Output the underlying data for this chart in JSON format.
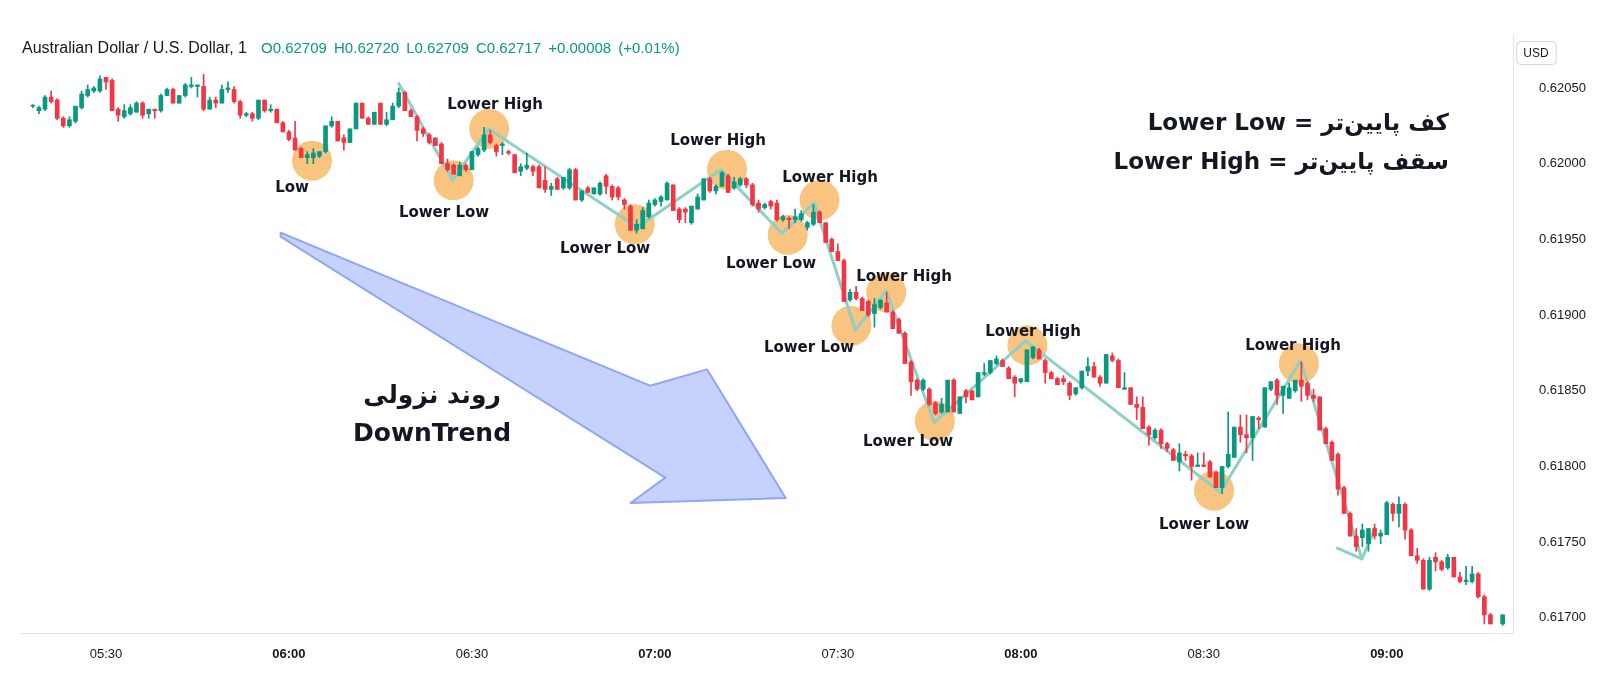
{
  "chart_data": {
    "type": "candlestick",
    "title": "Australian Dollar / U.S. Dollar, 1",
    "subtitle": "O0.62709 H0.62720 L0.62709 C0.62717 +0.00008 (+0.01%)",
    "ylabel": "USD",
    "x": [
      5.3,
      5.3167,
      5.3333,
      5.35,
      5.3667,
      5.3833,
      5.4,
      5.4167,
      5.4333,
      5.45,
      5.4667,
      5.4833,
      5.5,
      5.5167,
      5.5333,
      5.55,
      5.5667,
      5.5833,
      5.6,
      5.6167,
      5.6333,
      5.65,
      5.6667,
      5.6833,
      5.7,
      5.7167,
      5.7333,
      5.75,
      5.7667,
      5.7833,
      5.8,
      5.8167,
      5.8333,
      5.85,
      5.8667,
      5.8833,
      5.9,
      5.9167,
      5.9333,
      5.95,
      5.9667,
      5.9833,
      6,
      6.0167,
      6.0333,
      6.05,
      6.0667,
      6.0833,
      6.1,
      6.1167,
      6.1333,
      6.15,
      6.1667,
      6.1833,
      6.2,
      6.2167,
      6.2333,
      6.25,
      6.2667,
      6.2833,
      6.3,
      6.3167,
      6.3333,
      6.35,
      6.3667,
      6.3833,
      6.4,
      6.4167,
      6.4333,
      6.45,
      6.4667,
      6.4833,
      6.5,
      6.5167,
      6.5333,
      6.55,
      6.5667,
      6.5833,
      6.6,
      6.6167,
      6.6333,
      6.65,
      6.6667,
      6.6833,
      6.7,
      6.7167,
      6.7333,
      6.75,
      6.7667,
      6.7833,
      6.8,
      6.8167,
      6.8333,
      6.85,
      6.8667,
      6.8833,
      6.9,
      6.9167,
      6.9333,
      6.95,
      6.9667,
      6.9833,
      7,
      7.0167,
      7.0333,
      7.05,
      7.0667,
      7.0833,
      7.1,
      7.1167,
      7.1333,
      7.15,
      7.1667,
      7.1833,
      7.2,
      7.2167,
      7.2333,
      7.25,
      7.2667,
      7.2833,
      7.3,
      7.3167,
      7.3333,
      7.35,
      7.3667,
      7.3833,
      7.4,
      7.4167,
      7.4333,
      7.45,
      7.4667,
      7.4833,
      7.5,
      7.5167,
      7.5333,
      7.55,
      7.5667,
      7.5833,
      7.6,
      7.6167,
      7.6333,
      7.65,
      7.6667,
      7.6833,
      7.7,
      7.7167,
      7.7333,
      7.75,
      7.7667,
      7.7833,
      7.8,
      7.8167,
      7.8333,
      7.85,
      7.8667,
      7.8833,
      7.9,
      7.9167,
      7.9333,
      7.95,
      7.9667,
      7.9833,
      8,
      8.0167,
      8.0333,
      8.05,
      8.0667,
      8.0833,
      8.1,
      8.1167,
      8.1333,
      8.15,
      8.1667,
      8.1833,
      8.2,
      8.2167,
      8.2333,
      8.25,
      8.2667,
      8.2833,
      8.3,
      8.3167,
      8.3333,
      8.35,
      8.3667,
      8.3833,
      8.4,
      8.4167,
      8.4333,
      8.45,
      8.4667,
      8.4833,
      8.5,
      8.5167,
      8.5333,
      8.55,
      8.5667,
      8.5833,
      8.6,
      8.6167,
      8.6333,
      8.65,
      8.6667,
      8.6833,
      8.7,
      8.7167,
      8.7333,
      8.75,
      8.7667,
      8.7833,
      8.8,
      8.8167,
      8.8333,
      8.85,
      8.8667,
      8.8833,
      8.9,
      8.9167,
      8.9333,
      8.95,
      8.9667,
      8.9833,
      9,
      9.0167,
      9.0333,
      9.05,
      9.0667,
      9.0833,
      9.1,
      9.1167,
      9.1333,
      9.15,
      9.1667,
      9.1833,
      9.2,
      9.2167,
      9.2333,
      9.25,
      9.2667,
      9.2833,
      9.3167
    ],
    "ohlc": [
      [
        0.62038,
        0.62039,
        0.62037,
        0.62038
      ],
      [
        0.62035,
        0.62038,
        0.62033,
        0.62037
      ],
      [
        0.62036,
        0.62045,
        0.62035,
        0.62044
      ],
      [
        0.62044,
        0.62048,
        0.6204,
        0.62041
      ],
      [
        0.62042,
        0.62043,
        0.62029,
        0.6203
      ],
      [
        0.6203,
        0.62031,
        0.62024,
        0.62025
      ],
      [
        0.62025,
        0.62031,
        0.62024,
        0.62029
      ],
      [
        0.62028,
        0.62038,
        0.62027,
        0.62038
      ],
      [
        0.62037,
        0.62048,
        0.62036,
        0.62046
      ],
      [
        0.62045,
        0.62052,
        0.62044,
        0.62049
      ],
      [
        0.62048,
        0.62051,
        0.62047,
        0.6205
      ],
      [
        0.62048,
        0.62058,
        0.62047,
        0.62056
      ],
      [
        0.62057,
        0.62057,
        0.62049,
        0.62054
      ],
      [
        0.62055,
        0.62056,
        0.62035,
        0.62035
      ],
      [
        0.62036,
        0.62037,
        0.62028,
        0.62032
      ],
      [
        0.62031,
        0.62039,
        0.6203,
        0.62035
      ],
      [
        0.62033,
        0.62039,
        0.62032,
        0.62037
      ],
      [
        0.62034,
        0.62041,
        0.62034,
        0.6204
      ],
      [
        0.6204,
        0.62041,
        0.6203,
        0.62032
      ],
      [
        0.62033,
        0.62036,
        0.6203,
        0.62036
      ],
      [
        0.62036,
        0.62036,
        0.6203,
        0.62035
      ],
      [
        0.62035,
        0.62046,
        0.62034,
        0.62045
      ],
      [
        0.62045,
        0.6205,
        0.62045,
        0.62049
      ],
      [
        0.62049,
        0.6205,
        0.6204,
        0.6204
      ],
      [
        0.6204,
        0.62045,
        0.6204,
        0.62045
      ],
      [
        0.62045,
        0.62053,
        0.62044,
        0.62052
      ],
      [
        0.62051,
        0.62057,
        0.6205,
        0.62052
      ],
      [
        0.62051,
        0.62052,
        0.62044,
        0.62052
      ],
      [
        0.62051,
        0.62059,
        0.62035,
        0.62036
      ],
      [
        0.62036,
        0.62044,
        0.62036,
        0.62042
      ],
      [
        0.62042,
        0.62044,
        0.62037,
        0.6204
      ],
      [
        0.6204,
        0.62052,
        0.6204,
        0.62049
      ],
      [
        0.62049,
        0.62054,
        0.62047,
        0.6205
      ],
      [
        0.62049,
        0.62051,
        0.6204,
        0.62041
      ],
      [
        0.62041,
        0.62042,
        0.6203,
        0.62032
      ],
      [
        0.62032,
        0.62034,
        0.62031,
        0.62033
      ],
      [
        0.62033,
        0.62034,
        0.62028,
        0.6203
      ],
      [
        0.6203,
        0.62042,
        0.62029,
        0.62042
      ],
      [
        0.62042,
        0.62042,
        0.62034,
        0.62035
      ],
      [
        0.62035,
        0.62039,
        0.62034,
        0.62036
      ],
      [
        0.62036,
        0.62036,
        0.62027,
        0.62027
      ],
      [
        0.62027,
        0.62028,
        0.62021,
        0.62021
      ],
      [
        0.62021,
        0.62022,
        0.62015,
        0.62016
      ],
      [
        0.62017,
        0.62028,
        0.62009,
        0.62009
      ],
      [
        0.6201,
        0.62011,
        0.62004,
        0.62004
      ],
      [
        0.62004,
        0.62008,
        0.62,
        0.62006
      ],
      [
        0.62004,
        0.6201,
        0.62,
        0.62007
      ],
      [
        0.62005,
        0.62008,
        0.62004,
        0.62008
      ],
      [
        0.62008,
        0.62025,
        0.62007,
        0.62025
      ],
      [
        0.62025,
        0.62031,
        0.62024,
        0.62028
      ],
      [
        0.62028,
        0.62028,
        0.62015,
        0.62015
      ],
      [
        0.62017,
        0.62019,
        0.62009,
        0.62014
      ],
      [
        0.62014,
        0.62023,
        0.62014,
        0.62023
      ],
      [
        0.62023,
        0.6204,
        0.62023,
        0.6204
      ],
      [
        0.6204,
        0.6204,
        0.6203,
        0.6203
      ],
      [
        0.6203,
        0.62031,
        0.62026,
        0.62026
      ],
      [
        0.62026,
        0.62034,
        0.62026,
        0.62034
      ],
      [
        0.6204,
        0.6204,
        0.62026,
        0.62026
      ],
      [
        0.62026,
        0.62034,
        0.62025,
        0.62029
      ],
      [
        0.62029,
        0.6204,
        0.62029,
        0.62038
      ],
      [
        0.62038,
        0.6205,
        0.62037,
        0.62047
      ],
      [
        0.62047,
        0.62048,
        0.62035,
        0.62035
      ],
      [
        0.62035,
        0.62036,
        0.62031,
        0.62031
      ],
      [
        0.62031,
        0.62032,
        0.62015,
        0.62022
      ],
      [
        0.62023,
        0.62024,
        0.62018,
        0.6202
      ],
      [
        0.62019,
        0.6202,
        0.62013,
        0.62014
      ],
      [
        0.62017,
        0.62017,
        0.62012,
        0.62012
      ],
      [
        0.62013,
        0.62014,
        0.62,
        0.62
      ],
      [
        0.62,
        0.62003,
        0.61995,
        0.61996
      ],
      [
        0.61999,
        0.62,
        0.61993,
        0.61993
      ],
      [
        0.61992,
        0.62001,
        0.61992,
        0.61999
      ],
      [
        0.61999,
        0.62,
        0.61995,
        0.61996
      ],
      [
        0.61996,
        0.62008,
        0.61996,
        0.62008
      ],
      [
        0.62006,
        0.62011,
        0.62005,
        0.6201
      ],
      [
        0.62009,
        0.62024,
        0.62008,
        0.62019
      ],
      [
        0.62019,
        0.62022,
        0.62013,
        0.62014
      ],
      [
        0.62012,
        0.62013,
        0.62005,
        0.62008
      ],
      [
        0.62012,
        0.62014,
        0.62006,
        0.62013
      ],
      [
        0.62008,
        0.62009,
        0.62006,
        0.62007
      ],
      [
        0.62006,
        0.62006,
        0.61994,
        0.61994
      ],
      [
        0.61995,
        0.62,
        0.61992,
        0.61998
      ],
      [
        0.61997,
        0.62007,
        0.61996,
        0.61999
      ],
      [
        0.61998,
        0.61999,
        0.61992,
        0.61995
      ],
      [
        0.61998,
        0.61999,
        0.61984,
        0.61984
      ],
      [
        0.61989,
        0.61998,
        0.61981,
        0.61983
      ],
      [
        0.61983,
        0.61987,
        0.61979,
        0.61985
      ],
      [
        0.6199,
        0.61991,
        0.61983,
        0.61983
      ],
      [
        0.61984,
        0.61991,
        0.61983,
        0.61991
      ],
      [
        0.61984,
        0.61997,
        0.61983,
        0.61996
      ],
      [
        0.61996,
        0.61997,
        0.61976,
        0.61976
      ],
      [
        0.61976,
        0.61982,
        0.61975,
        0.61982
      ],
      [
        0.61984,
        0.61985,
        0.61981,
        0.61981
      ],
      [
        0.6198,
        0.61984,
        0.6198,
        0.61984
      ],
      [
        0.6198,
        0.61988,
        0.61979,
        0.61987
      ],
      [
        0.61992,
        0.61993,
        0.6198,
        0.61985
      ],
      [
        0.61985,
        0.61986,
        0.61976,
        0.61978
      ],
      [
        0.61984,
        0.61985,
        0.61976,
        0.61978
      ],
      [
        0.61976,
        0.61977,
        0.6197,
        0.61973
      ],
      [
        0.61972,
        0.61973,
        0.61956,
        0.61956
      ],
      [
        0.61956,
        0.61963,
        0.61954,
        0.6196
      ],
      [
        0.61957,
        0.61971,
        0.61957,
        0.61969
      ],
      [
        0.61965,
        0.61976,
        0.61964,
        0.61974
      ],
      [
        0.61973,
        0.61977,
        0.61972,
        0.61976
      ],
      [
        0.61975,
        0.61979,
        0.61972,
        0.61978
      ],
      [
        0.61976,
        0.61988,
        0.61976,
        0.61987
      ],
      [
        0.61986,
        0.61986,
        0.61969,
        0.61969
      ],
      [
        0.6197,
        0.61971,
        0.61961,
        0.61963
      ],
      [
        0.6197,
        0.61971,
        0.61961,
        0.61968
      ],
      [
        0.61961,
        0.61972,
        0.6196,
        0.61972
      ],
      [
        0.6197,
        0.6198,
        0.6197,
        0.61978
      ],
      [
        0.61976,
        0.6199,
        0.61976,
        0.6199
      ],
      [
        0.6199,
        0.61991,
        0.61981,
        0.61982
      ],
      [
        0.61982,
        0.61986,
        0.6198,
        0.61985
      ],
      [
        0.61985,
        0.61995,
        0.61985,
        0.61994
      ],
      [
        0.61992,
        0.61993,
        0.61981,
        0.61981
      ],
      [
        0.61984,
        0.61991,
        0.61983,
        0.61988
      ],
      [
        0.61986,
        0.61991,
        0.61985,
        0.6199
      ],
      [
        0.6199,
        0.61991,
        0.61984,
        0.61986
      ],
      [
        0.61986,
        0.61987,
        0.61972,
        0.61973
      ],
      [
        0.61974,
        0.61976,
        0.61968,
        0.6197
      ],
      [
        0.61971,
        0.61974,
        0.6197,
        0.61973
      ],
      [
        0.61975,
        0.61976,
        0.6197,
        0.61972
      ],
      [
        0.61974,
        0.61976,
        0.61962,
        0.61963
      ],
      [
        0.61963,
        0.61966,
        0.61962,
        0.61965
      ],
      [
        0.61964,
        0.61965,
        0.61957,
        0.61963
      ],
      [
        0.61963,
        0.6197,
        0.61961,
        0.61965
      ],
      [
        0.61963,
        0.61969,
        0.61962,
        0.61967
      ],
      [
        0.61958,
        0.61962,
        0.61956,
        0.61961
      ],
      [
        0.6196,
        0.61973,
        0.61959,
        0.61968
      ],
      [
        0.61968,
        0.61969,
        0.61961,
        0.61961
      ],
      [
        0.61961,
        0.61961,
        0.61948,
        0.61948
      ],
      [
        0.6195,
        0.61951,
        0.61942,
        0.61942
      ],
      [
        0.61942,
        0.61947,
        0.61936,
        0.61936
      ],
      [
        0.61936,
        0.61937,
        0.61909,
        0.61909
      ],
      [
        0.6191,
        0.61917,
        0.61909,
        0.61915
      ],
      [
        0.61915,
        0.61919,
        0.6191,
        0.61911
      ],
      [
        0.61911,
        0.61912,
        0.61903,
        0.61903
      ],
      [
        0.61909,
        0.6191,
        0.61899,
        0.619
      ],
      [
        0.61901,
        0.61911,
        0.61892,
        0.61907
      ],
      [
        0.61905,
        0.6191,
        0.61904,
        0.6191
      ],
      [
        0.61908,
        0.61915,
        0.61902,
        0.61902
      ],
      [
        0.61902,
        0.61903,
        0.61891,
        0.61891
      ],
      [
        0.61897,
        0.61898,
        0.61888,
        0.61888
      ],
      [
        0.61888,
        0.61889,
        0.61868,
        0.61868
      ],
      [
        0.61869,
        0.6187,
        0.61847,
        0.61856
      ],
      [
        0.61857,
        0.61858,
        0.6185,
        0.61851
      ],
      [
        0.61851,
        0.61858,
        0.6185,
        0.61857
      ],
      [
        0.61851,
        0.61852,
        0.6184,
        0.61841
      ],
      [
        0.61842,
        0.61843,
        0.61834,
        0.61835
      ],
      [
        0.61836,
        0.61845,
        0.61835,
        0.61841
      ],
      [
        0.61836,
        0.61857,
        0.61836,
        0.61857
      ],
      [
        0.61857,
        0.61858,
        0.61836,
        0.61836
      ],
      [
        0.61835,
        0.61846,
        0.61835,
        0.61846
      ],
      [
        0.6185,
        0.61851,
        0.61842,
        0.61846
      ],
      [
        0.6185,
        0.6185,
        0.61844,
        0.61844
      ],
      [
        0.61846,
        0.61862,
        0.61846,
        0.61862
      ],
      [
        0.61861,
        0.61868,
        0.6186,
        0.61862
      ],
      [
        0.61862,
        0.6187,
        0.61861,
        0.6187
      ],
      [
        0.61868,
        0.61873,
        0.61867,
        0.61871
      ],
      [
        0.6187,
        0.61871,
        0.61866,
        0.61866
      ],
      [
        0.61865,
        0.61866,
        0.61858,
        0.61858
      ],
      [
        0.61859,
        0.6186,
        0.61846,
        0.61855
      ],
      [
        0.61856,
        0.61858,
        0.61855,
        0.61858
      ],
      [
        0.61856,
        0.61877,
        0.61856,
        0.61877
      ],
      [
        0.61872,
        0.61879,
        0.61871,
        0.61879
      ],
      [
        0.61877,
        0.61878,
        0.61871,
        0.61871
      ],
      [
        0.6187,
        0.61871,
        0.61855,
        0.61862
      ],
      [
        0.61862,
        0.61863,
        0.61858,
        0.61858
      ],
      [
        0.61858,
        0.61859,
        0.61854,
        0.61854
      ],
      [
        0.61858,
        0.6186,
        0.61854,
        0.61856
      ],
      [
        0.61855,
        0.61856,
        0.61844,
        0.61847
      ],
      [
        0.61848,
        0.61852,
        0.61847,
        0.61852
      ],
      [
        0.61852,
        0.61863,
        0.61851,
        0.61863
      ],
      [
        0.61863,
        0.61872,
        0.6186,
        0.61866
      ],
      [
        0.61866,
        0.61869,
        0.61859,
        0.61859
      ],
      [
        0.61859,
        0.6186,
        0.61853,
        0.61855
      ],
      [
        0.61855,
        0.61874,
        0.61855,
        0.61874
      ],
      [
        0.61873,
        0.61875,
        0.61869,
        0.6187
      ],
      [
        0.6187,
        0.61871,
        0.61852,
        0.61852
      ],
      [
        0.61851,
        0.61862,
        0.61851,
        0.61852
      ],
      [
        0.61852,
        0.61852,
        0.61841,
        0.61841
      ],
      [
        0.61841,
        0.61846,
        0.61831,
        0.61839
      ],
      [
        0.61839,
        0.61846,
        0.61825,
        0.61825
      ],
      [
        0.61826,
        0.61827,
        0.61814,
        0.61821
      ],
      [
        0.61819,
        0.61825,
        0.61818,
        0.61824
      ],
      [
        0.61824,
        0.61825,
        0.61812,
        0.61815
      ],
      [
        0.61815,
        0.61816,
        0.6181,
        0.61812
      ],
      [
        0.61811,
        0.61812,
        0.61804,
        0.61804
      ],
      [
        0.61803,
        0.61815,
        0.61797,
        0.61809
      ],
      [
        0.61808,
        0.6181,
        0.61804,
        0.61807
      ],
      [
        0.61807,
        0.61808,
        0.61791,
        0.618
      ],
      [
        0.618,
        0.61809,
        0.618,
        0.61801
      ],
      [
        0.61801,
        0.61809,
        0.618,
        0.618
      ],
      [
        0.61803,
        0.61804,
        0.61793,
        0.61793
      ],
      [
        0.61796,
        0.61797,
        0.61786,
        0.61786
      ],
      [
        0.61786,
        0.618,
        0.61782,
        0.618
      ],
      [
        0.618,
        0.61836,
        0.61799,
        0.61808
      ],
      [
        0.61806,
        0.61826,
        0.61806,
        0.61826
      ],
      [
        0.61826,
        0.61834,
        0.61816,
        0.61821
      ],
      [
        0.61821,
        0.61834,
        0.61809,
        0.61819
      ],
      [
        0.61819,
        0.61833,
        0.61804,
        0.61833
      ],
      [
        0.61832,
        0.61833,
        0.61825,
        0.61831
      ],
      [
        0.61826,
        0.61852,
        0.61826,
        0.61852
      ],
      [
        0.61851,
        0.61856,
        0.6185,
        0.61856
      ],
      [
        0.61857,
        0.61858,
        0.61841,
        0.61847
      ],
      [
        0.61847,
        0.61853,
        0.61835,
        0.61853
      ],
      [
        0.61845,
        0.61855,
        0.61845,
        0.61852
      ],
      [
        0.6185,
        0.61857,
        0.61849,
        0.61857
      ],
      [
        0.61857,
        0.61869,
        0.61843,
        0.61853
      ],
      [
        0.61855,
        0.61856,
        0.61844,
        0.61847
      ],
      [
        0.61847,
        0.61851,
        0.61843,
        0.61845
      ],
      [
        0.61846,
        0.61846,
        0.61824,
        0.61824
      ],
      [
        0.61825,
        0.61826,
        0.61815,
        0.61815
      ],
      [
        0.61816,
        0.61817,
        0.61804,
        0.61804
      ],
      [
        0.61808,
        0.61809,
        0.61781,
        0.61785
      ],
      [
        0.61786,
        0.61787,
        0.61769,
        0.61769
      ],
      [
        0.61769,
        0.6177,
        0.61754,
        0.61754
      ],
      [
        0.61754,
        0.61759,
        0.61744,
        0.61747
      ],
      [
        0.61753,
        0.61762,
        0.61747,
        0.61758
      ],
      [
        0.61749,
        0.61759,
        0.61744,
        0.61759
      ],
      [
        0.61759,
        0.61762,
        0.61752,
        0.61754
      ],
      [
        0.61754,
        0.61758,
        0.61749,
        0.61756
      ],
      [
        0.61755,
        0.61777,
        0.61755,
        0.61776
      ],
      [
        0.61775,
        0.61776,
        0.61764,
        0.61769
      ],
      [
        0.61769,
        0.6178,
        0.6176,
        0.61775
      ],
      [
        0.61775,
        0.61776,
        0.61752,
        0.61758
      ],
      [
        0.61758,
        0.61759,
        0.61741,
        0.61741
      ],
      [
        0.61741,
        0.61746,
        0.61736,
        0.61738
      ],
      [
        0.61738,
        0.61739,
        0.61719,
        0.61719
      ],
      [
        0.61719,
        0.6174,
        0.61718,
        0.61738
      ],
      [
        0.6174,
        0.61743,
        0.61731,
        0.61737
      ],
      [
        0.61737,
        0.61738,
        0.61731,
        0.61732
      ],
      [
        0.61733,
        0.61742,
        0.61732,
        0.6174
      ],
      [
        0.6174,
        0.6174,
        0.61727,
        0.61727
      ],
      [
        0.61727,
        0.6173,
        0.61723,
        0.61724
      ],
      [
        0.61724,
        0.61734,
        0.61722,
        0.61725
      ],
      [
        0.61724,
        0.61734,
        0.61723,
        0.61729
      ],
      [
        0.61729,
        0.6173,
        0.61713,
        0.61714
      ],
      [
        0.61714,
        0.61715,
        0.61696,
        0.61702
      ],
      [
        0.61702,
        0.61703,
        0.61696,
        0.61696
      ],
      [
        0.61696,
        0.61702,
        0.61695,
        0.61702
      ]
    ],
    "colors": [
      "#089981",
      "#089981",
      "#089981",
      "#f23645",
      "#f23645",
      "#f23645",
      "#089981",
      "#089981",
      "#089981",
      "#089981",
      "#089981",
      "#089981",
      "#f23645",
      "#f23645",
      "#f23645",
      "#089981",
      "#089981",
      "#089981",
      "#f23645",
      "#089981",
      "#f23645",
      "#089981",
      "#089981",
      "#f23645",
      "#089981",
      "#089981",
      "#089981",
      "#089981",
      "#f23645",
      "#089981",
      "#f23645",
      "#089981",
      "#089981",
      "#f23645",
      "#f23645",
      "#089981",
      "#f23645",
      "#089981",
      "#f23645",
      "#089981",
      "#f23645",
      "#f23645",
      "#f23645",
      "#f23645",
      "#f23645",
      "#089981",
      "#089981",
      "#089981",
      "#089981",
      "#089981",
      "#f23645",
      "#f23645",
      "#089981",
      "#089981",
      "#f23645",
      "#f23645",
      "#089981",
      "#f23645",
      "#089981",
      "#089981",
      "#089981",
      "#f23645",
      "#f23645",
      "#f23645",
      "#f23645",
      "#f23645",
      "#f23645",
      "#f23645",
      "#f23645",
      "#f23645",
      "#089981",
      "#f23645",
      "#089981",
      "#089981",
      "#089981",
      "#f23645",
      "#f23645",
      "#089981",
      "#f23645",
      "#f23645",
      "#089981",
      "#089981",
      "#f23645",
      "#f23645",
      "#f23645",
      "#089981",
      "#f23645",
      "#089981",
      "#089981",
      "#f23645",
      "#089981",
      "#f23645",
      "#089981",
      "#089981",
      "#f23645",
      "#f23645",
      "#f23645",
      "#f23645",
      "#f23645",
      "#089981",
      "#089981",
      "#089981",
      "#089981",
      "#089981",
      "#089981",
      "#f23645",
      "#f23645",
      "#f23645",
      "#089981",
      "#089981",
      "#089981",
      "#f23645",
      "#089981",
      "#089981",
      "#f23645",
      "#089981",
      "#089981",
      "#f23645",
      "#f23645",
      "#f23645",
      "#089981",
      "#f23645",
      "#f23645",
      "#089981",
      "#f23645",
      "#089981",
      "#089981",
      "#089981",
      "#089981",
      "#f23645",
      "#f23645",
      "#f23645",
      "#f23645",
      "#f23645",
      "#089981",
      "#f23645",
      "#f23645",
      "#f23645",
      "#089981",
      "#089981",
      "#f23645",
      "#f23645",
      "#f23645",
      "#f23645",
      "#f23645",
      "#f23645",
      "#089981",
      "#f23645",
      "#f23645",
      "#089981",
      "#089981",
      "#f23645",
      "#089981",
      "#f23645",
      "#f23645",
      "#089981",
      "#089981",
      "#089981",
      "#089981",
      "#f23645",
      "#f23645",
      "#f23645",
      "#089981",
      "#089981",
      "#089981",
      "#f23645",
      "#f23645",
      "#f23645",
      "#f23645",
      "#f23645",
      "#f23645",
      "#089981",
      "#089981",
      "#089981",
      "#f23645",
      "#f23645",
      "#089981",
      "#f23645",
      "#f23645",
      "#089981",
      "#f23645",
      "#f23645",
      "#f23645",
      "#f23645",
      "#089981",
      "#f23645",
      "#f23645",
      "#f23645",
      "#089981",
      "#f23645",
      "#f23645",
      "#089981",
      "#f23645",
      "#f23645",
      "#f23645",
      "#089981",
      "#089981",
      "#089981",
      "#f23645",
      "#f23645",
      "#089981",
      "#f23645",
      "#089981",
      "#089981",
      "#f23645",
      "#089981",
      "#089981",
      "#089981",
      "#f23645",
      "#f23645",
      "#f23645",
      "#f23645",
      "#f23645",
      "#f23645",
      "#f23645",
      "#f23645",
      "#f23645",
      "#f23645",
      "#089981",
      "#089981",
      "#f23645",
      "#089981",
      "#089981",
      "#f23645",
      "#089981",
      "#f23645",
      "#f23645",
      "#f23645",
      "#f23645",
      "#089981",
      "#f23645",
      "#f23645",
      "#089981",
      "#f23645",
      "#f23645",
      "#089981",
      "#089981",
      "#f23645",
      "#f23645",
      "#f23645",
      "#089981"
    ],
    "series": [
      {
        "type": "line",
        "x": [
          6.3,
          6.447,
          6.545,
          6.952,
          7.18,
          7.347,
          7.435,
          7.548,
          7.632,
          7.763,
          8.013,
          8.545,
          8.765,
          8.932,
          8.968
        ],
        "values": [
          0.62053,
          0.61989,
          0.62023,
          0.61958,
          0.61996,
          0.61954,
          0.61974,
          0.6189,
          0.61916,
          0.61829,
          0.61883,
          0.61783,
          0.6187,
          0.61739,
          0.61759
        ],
        "color": "#8dd0c4"
      },
      {
        "type": "line",
        "x": [
          8.865,
          8.932
        ],
        "values": [
          0.61746,
          0.61739
        ],
        "color": "#8dd0c4"
      },
      {
        "type": "scatter",
        "marker": "circle",
        "x": [
          6.063,
          6.45,
          6.547,
          6.945,
          7.197,
          7.363,
          7.45,
          7.537,
          7.632,
          7.765,
          8.018,
          8.528,
          8.76
        ],
        "values": [
          0.62002,
          0.61989,
          0.62023,
          0.6196,
          0.61996,
          0.61953,
          0.61976,
          0.61893,
          0.61915,
          0.6183,
          0.6188,
          0.61784,
          0.61868
        ],
        "color": "#f9c47f"
      }
    ],
    "xlim": [
      5.265,
      9.345
    ],
    "xticks": [
      {
        "value": 5.5,
        "label": "05:30"
      },
      {
        "value": 6,
        "label": "06:00"
      },
      {
        "value": 6.5,
        "label": "06:30"
      },
      {
        "value": 7,
        "label": "07:00"
      },
      {
        "value": 7.5,
        "label": "07:30"
      },
      {
        "value": 8,
        "label": "08:00"
      },
      {
        "value": 8.5,
        "label": "08:30"
      },
      {
        "value": 9,
        "label": "09:00"
      }
    ],
    "ylim": [
      0.6169,
      0.62085
    ],
    "yticks": [
      {
        "value": 0.617,
        "label": "0.61700"
      },
      {
        "value": 0.6175,
        "label": "0.61750"
      },
      {
        "value": 0.618,
        "label": "0.61800"
      },
      {
        "value": 0.6185,
        "label": "0.61850"
      },
      {
        "value": 0.619,
        "label": "0.61900"
      },
      {
        "value": 0.6195,
        "label": "0.61950"
      },
      {
        "value": 0.62,
        "label": "0.62000"
      },
      {
        "value": 0.6205,
        "label": "0.62050"
      }
    ],
    "annotations": [
      "Low",
      "Lower Low",
      "Lower High",
      "Lower Low",
      "Lower High",
      "Lower Low",
      "Lower High",
      "Lower Low",
      "Lower High",
      "Lower Low",
      "Lower High",
      "Lower Low",
      "Lower High",
      "کف پایین‌تر = Lower Low",
      "سقف پایین‌تر = Lower High",
      "روند نزولی\nDownTrend"
    ]
  }
}
